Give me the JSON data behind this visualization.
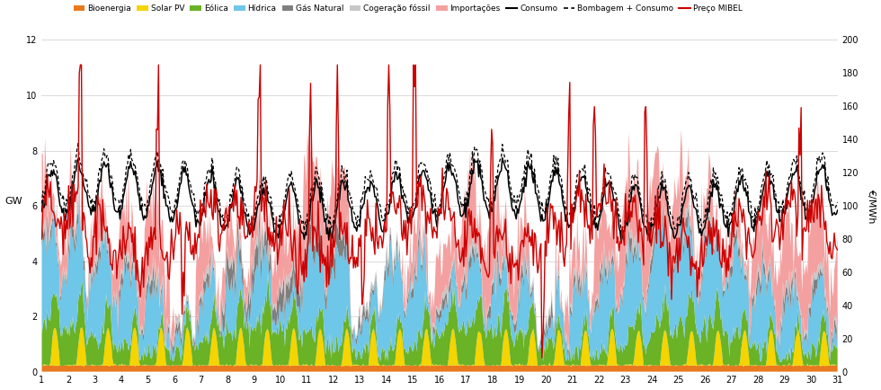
{
  "ylabel_left": "GW",
  "ylabel_right": "€/MWh",
  "xlim": [
    1,
    31
  ],
  "ylim_left": [
    0,
    12
  ],
  "ylim_right": [
    0,
    200
  ],
  "yticks_left": [
    0,
    2,
    4,
    6,
    8,
    10,
    12
  ],
  "yticks_right": [
    0,
    20,
    40,
    60,
    80,
    100,
    120,
    140,
    160,
    180,
    200
  ],
  "xticks": [
    1,
    2,
    3,
    4,
    5,
    6,
    7,
    8,
    9,
    10,
    11,
    12,
    13,
    14,
    15,
    16,
    17,
    18,
    19,
    20,
    21,
    22,
    23,
    24,
    25,
    26,
    27,
    28,
    29,
    30,
    31
  ],
  "colors": {
    "bioenergia": "#e8791e",
    "solar_pv": "#f5d400",
    "eolica": "#6ab226",
    "hidrica": "#6ec6e8",
    "gas_natural": "#7f7f7f",
    "cogeracao_fossil": "#c8c8c8",
    "importacoes": "#f4a0a0",
    "consumo": "#000000",
    "bombagem_consumo": "#000000",
    "preco_mibel": "#cc0000"
  },
  "n_points": 744,
  "days": 31
}
